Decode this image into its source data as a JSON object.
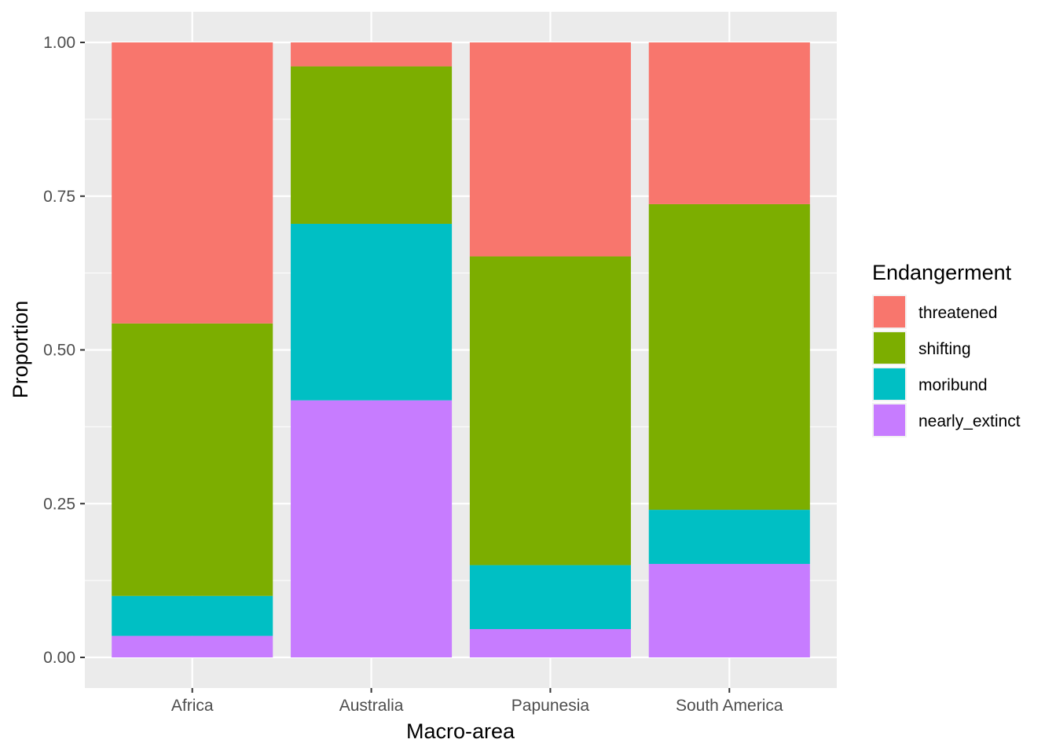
{
  "chart_data": {
    "type": "bar",
    "stacked": true,
    "title": "",
    "xlabel": "Macro-area",
    "ylabel": "Proportion",
    "ylim": [
      0,
      1
    ],
    "yticks": [
      "0.00",
      "0.25",
      "0.50",
      "0.75",
      "1.00"
    ],
    "categories": [
      "Africa",
      "Australia",
      "Papunesia",
      "South America"
    ],
    "grid": true,
    "legend": {
      "title": "Endangerment",
      "position": "right",
      "entries": [
        "threatened",
        "shifting",
        "moribund",
        "nearly_extinct"
      ]
    },
    "series": [
      {
        "name": "nearly_extinct",
        "color": "#C77CFF",
        "values": [
          0.035,
          0.418,
          0.046,
          0.152
        ]
      },
      {
        "name": "moribund",
        "color": "#00BFC4",
        "values": [
          0.065,
          0.287,
          0.104,
          0.088
        ]
      },
      {
        "name": "shifting",
        "color": "#7CAE00",
        "values": [
          0.443,
          0.256,
          0.502,
          0.497
        ]
      },
      {
        "name": "threatened",
        "color": "#F8766D",
        "values": [
          0.457,
          0.039,
          0.348,
          0.263
        ]
      }
    ],
    "panel_background": "#EBEBEB",
    "grid_color": "#FFFFFF"
  }
}
